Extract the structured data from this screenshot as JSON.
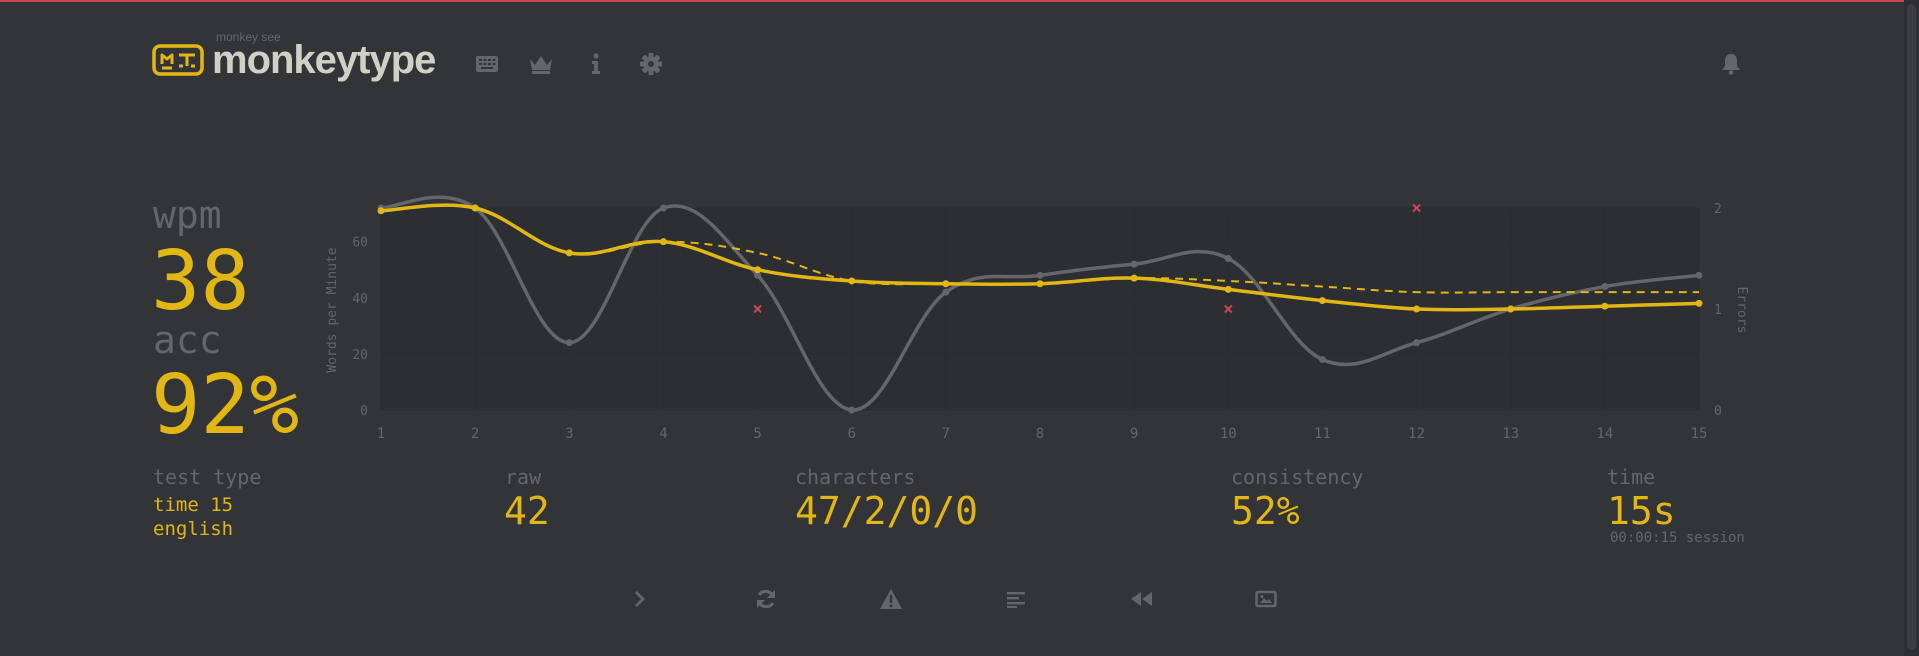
{
  "colors": {
    "bg": "#323437",
    "main": "#e2b714",
    "sub": "#646669",
    "text": "#d1d0c5",
    "error": "#ca4754"
  },
  "header": {
    "logo_sub": "monkey see",
    "logo_title": "monkeytype",
    "nav_icons": [
      "keyboard-icon",
      "crown-icon",
      "info-icon",
      "gear-icon",
      "bell-icon"
    ]
  },
  "stats": {
    "wpm_label": "wpm",
    "wpm_value": "38",
    "acc_label": "acc",
    "acc_value": "92%",
    "test_type_label": "test type",
    "test_type_mode": "time 15",
    "test_type_lang": "english",
    "raw_label": "raw",
    "raw_value": "42",
    "characters_label": "characters",
    "characters_value": "47/2/0/0",
    "consistency_label": "consistency",
    "consistency_value": "52%",
    "time_label": "time",
    "time_value": "15s",
    "session_value": "00:00:15 session"
  },
  "chart_data": {
    "type": "line",
    "x": [
      1,
      2,
      3,
      4,
      5,
      6,
      7,
      8,
      9,
      10,
      11,
      12,
      13,
      14,
      15
    ],
    "ylabel": "Words per Minute",
    "y2label": "Errors",
    "ylim": [
      0,
      72
    ],
    "y2lim": [
      0,
      2
    ],
    "yticks": [
      0,
      20,
      40,
      60
    ],
    "y2ticks": [
      0,
      1,
      2
    ],
    "series": [
      {
        "name": "raw",
        "values": [
          72,
          72,
          24,
          72,
          48,
          0,
          42,
          48,
          52,
          54,
          18,
          24,
          36,
          44,
          48
        ]
      },
      {
        "name": "wpm",
        "values": [
          71,
          72,
          56,
          60,
          50,
          46,
          45,
          45,
          47,
          43,
          39,
          36,
          36,
          37,
          38
        ]
      },
      {
        "name": "burst average",
        "values": [
          71,
          72,
          56,
          60,
          56,
          46,
          45,
          45,
          47,
          46,
          44,
          42,
          42,
          42,
          42
        ]
      },
      {
        "name": "errors",
        "points": [
          [
            5,
            1
          ],
          [
            10,
            1
          ],
          [
            12,
            2
          ]
        ]
      }
    ]
  },
  "actions": {
    "buttons": [
      "next-test",
      "restart-test",
      "report-warning",
      "words-history",
      "replay",
      "screenshot"
    ]
  }
}
